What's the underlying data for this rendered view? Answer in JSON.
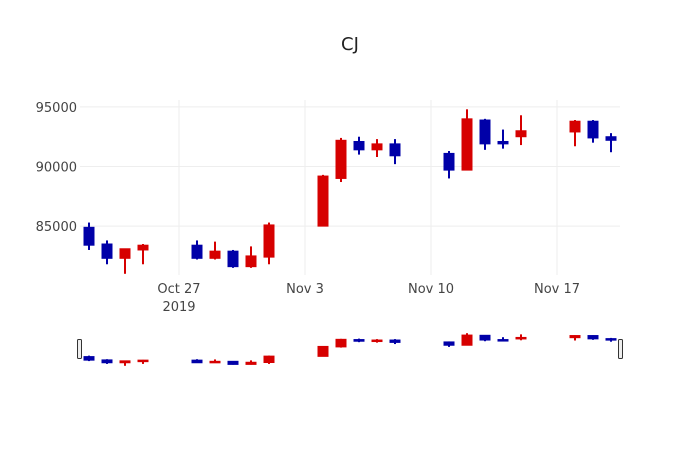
{
  "chart_data": {
    "type": "candlestick",
    "title": "CJ",
    "xlabel": "",
    "ylabel": "",
    "ylim": [
      80900,
      96000
    ],
    "y_ticks": [
      85000,
      90000,
      95000
    ],
    "y_tick_labels": [
      "85000",
      "90000",
      "95000"
    ],
    "x_ticks": [
      {
        "date": "2019-10-27",
        "label": "Oct 27",
        "sublabel": "2019"
      },
      {
        "date": "2019-11-03",
        "label": "Nov 3"
      },
      {
        "date": "2019-11-10",
        "label": "Nov 10"
      },
      {
        "date": "2019-11-17",
        "label": "Nov 17"
      }
    ],
    "colors": {
      "increasing": "#d60000",
      "decreasing": "#0000a8",
      "grid": "#eeeeee"
    },
    "grid": true,
    "rangeslider": true,
    "data": [
      {
        "date": "2019-10-22",
        "open": 84900,
        "high": 85300,
        "low": 83000,
        "close": 83400
      },
      {
        "date": "2019-10-23",
        "open": 83500,
        "high": 83800,
        "low": 81800,
        "close": 82300
      },
      {
        "date": "2019-10-24",
        "open": 82300,
        "high": 83100,
        "low": 81000,
        "close": 83100
      },
      {
        "date": "2019-10-25",
        "open": 83000,
        "high": 83500,
        "low": 81800,
        "close": 83400
      },
      {
        "date": "2019-10-28",
        "open": 83400,
        "high": 83800,
        "low": 82200,
        "close": 82300
      },
      {
        "date": "2019-10-29",
        "open": 82300,
        "high": 83700,
        "low": 82200,
        "close": 82900
      },
      {
        "date": "2019-10-30",
        "open": 82900,
        "high": 83000,
        "low": 81500,
        "close": 81600
      },
      {
        "date": "2019-10-31",
        "open": 81600,
        "high": 83300,
        "low": 81500,
        "close": 82500
      },
      {
        "date": "2019-11-01",
        "open": 82400,
        "high": 85300,
        "low": 81800,
        "close": 85100
      },
      {
        "date": "2019-11-04",
        "open": 85000,
        "high": 89300,
        "low": 85000,
        "close": 89200
      },
      {
        "date": "2019-11-05",
        "open": 89000,
        "high": 92400,
        "low": 88700,
        "close": 92200
      },
      {
        "date": "2019-11-06",
        "open": 92100,
        "high": 92500,
        "low": 91000,
        "close": 91400
      },
      {
        "date": "2019-11-07",
        "open": 91400,
        "high": 92300,
        "low": 90800,
        "close": 91900
      },
      {
        "date": "2019-11-08",
        "open": 91900,
        "high": 92300,
        "low": 90200,
        "close": 90900
      },
      {
        "date": "2019-11-11",
        "open": 91100,
        "high": 91300,
        "low": 89000,
        "close": 89700
      },
      {
        "date": "2019-11-12",
        "open": 89700,
        "high": 94800,
        "low": 89700,
        "close": 94000
      },
      {
        "date": "2019-11-13",
        "open": 93900,
        "high": 94000,
        "low": 91400,
        "close": 91900
      },
      {
        "date": "2019-11-14",
        "open": 92100,
        "high": 93100,
        "low": 91500,
        "close": 91900
      },
      {
        "date": "2019-11-15",
        "open": 92500,
        "high": 94300,
        "low": 91800,
        "close": 93000
      },
      {
        "date": "2019-11-18",
        "open": 92900,
        "high": 93900,
        "low": 91700,
        "close": 93800
      },
      {
        "date": "2019-11-19",
        "open": 93800,
        "high": 93900,
        "low": 92000,
        "close": 92400
      },
      {
        "date": "2019-11-20",
        "open": 92500,
        "high": 92800,
        "low": 91200,
        "close": 92200
      }
    ]
  }
}
